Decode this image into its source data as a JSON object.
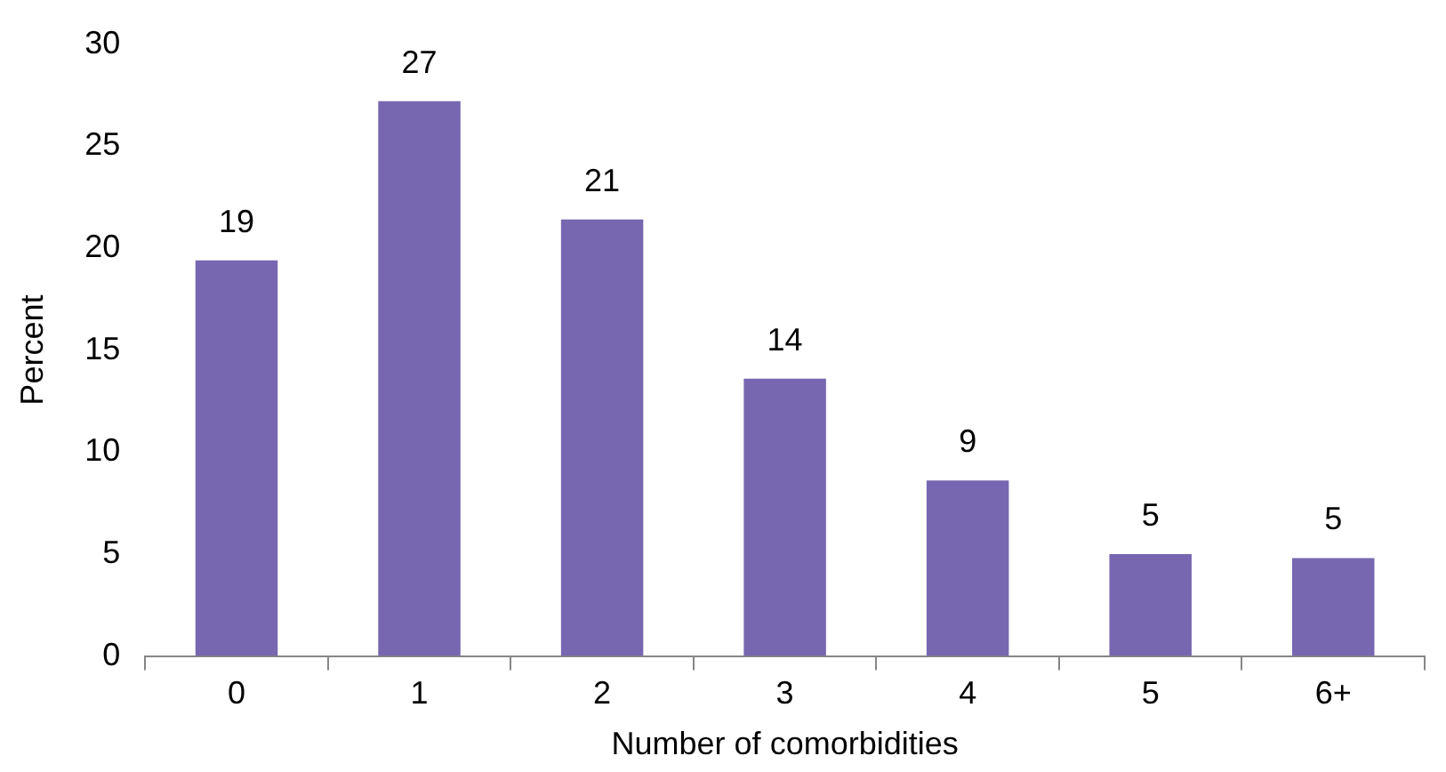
{
  "chart_data": {
    "type": "bar",
    "xlabel": "Number of comorbidities",
    "ylabel": "Percent",
    "categories": [
      "0",
      "1",
      "2",
      "3",
      "4",
      "5",
      "6+"
    ],
    "values": [
      19.4,
      27.2,
      21.4,
      13.6,
      8.6,
      5.0,
      4.8
    ],
    "value_labels": [
      "19",
      "27",
      "21",
      "14",
      "9",
      "5",
      "5"
    ],
    "color": "#7767b0",
    "ylim": [
      0,
      30
    ],
    "yticks": [
      0,
      5,
      10,
      15,
      20,
      25,
      30
    ],
    "grid": false,
    "legend": false
  }
}
